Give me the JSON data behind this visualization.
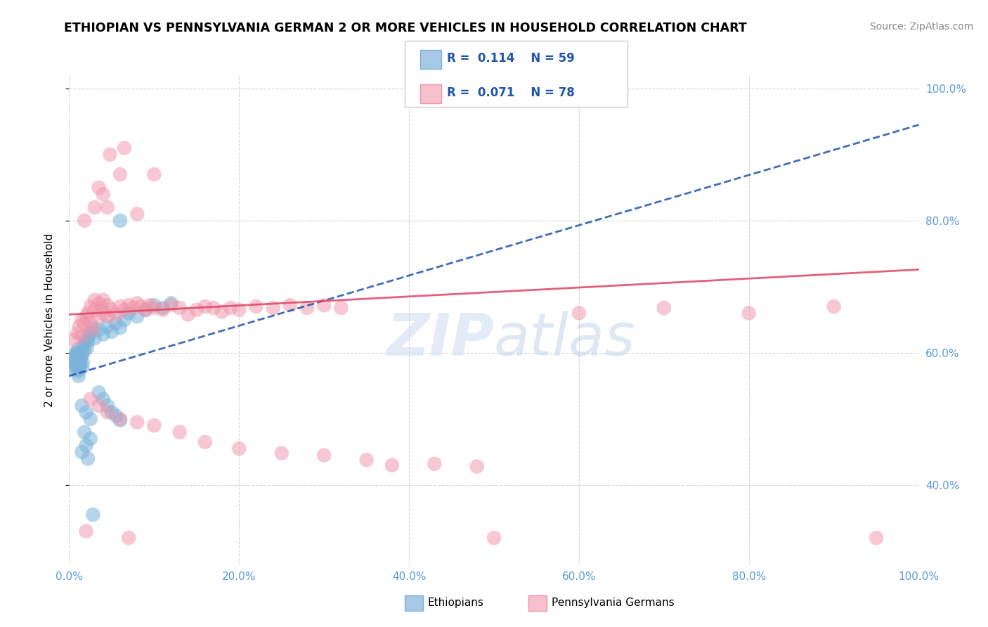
{
  "title": "ETHIOPIAN VS PENNSYLVANIA GERMAN 2 OR MORE VEHICLES IN HOUSEHOLD CORRELATION CHART",
  "source": "Source: ZipAtlas.com",
  "ylabel": "2 or more Vehicles in Household",
  "xlim": [
    0.0,
    1.0
  ],
  "ylim": [
    0.28,
    1.02
  ],
  "xtick_vals": [
    0.0,
    0.2,
    0.4,
    0.6,
    0.8,
    1.0
  ],
  "xtick_labels": [
    "0.0%",
    "20.0%",
    "40.0%",
    "60.0%",
    "80.0%",
    "100.0%"
  ],
  "ytick_vals": [
    0.4,
    0.6,
    0.8,
    1.0
  ],
  "ytick_labels": [
    "40.0%",
    "60.0%",
    "80.0%",
    "100.0%"
  ],
  "ethiopian_color": "#7ab3d9",
  "pg_color": "#f093a8",
  "trendline_eth_color": "#2255aa",
  "trendline_pg_color": "#dd4466",
  "watermark": "ZIPAtlas",
  "ethiopian_points": [
    [
      0.005,
      0.575
    ],
    [
      0.005,
      0.585
    ],
    [
      0.007,
      0.59
    ],
    [
      0.007,
      0.595
    ],
    [
      0.008,
      0.58
    ],
    [
      0.008,
      0.6
    ],
    [
      0.01,
      0.572
    ],
    [
      0.01,
      0.58
    ],
    [
      0.01,
      0.59
    ],
    [
      0.01,
      0.595
    ],
    [
      0.01,
      0.6
    ],
    [
      0.01,
      0.605
    ],
    [
      0.011,
      0.565
    ],
    [
      0.012,
      0.575
    ],
    [
      0.012,
      0.582
    ],
    [
      0.013,
      0.588
    ],
    [
      0.014,
      0.592
    ],
    [
      0.015,
      0.578
    ],
    [
      0.015,
      0.598
    ],
    [
      0.016,
      0.585
    ],
    [
      0.017,
      0.61
    ],
    [
      0.018,
      0.602
    ],
    [
      0.019,
      0.615
    ],
    [
      0.02,
      0.62
    ],
    [
      0.021,
      0.608
    ],
    [
      0.022,
      0.618
    ],
    [
      0.023,
      0.625
    ],
    [
      0.025,
      0.63
    ],
    [
      0.028,
      0.638
    ],
    [
      0.03,
      0.622
    ],
    [
      0.035,
      0.635
    ],
    [
      0.04,
      0.628
    ],
    [
      0.045,
      0.64
    ],
    [
      0.05,
      0.632
    ],
    [
      0.055,
      0.645
    ],
    [
      0.06,
      0.638
    ],
    [
      0.065,
      0.65
    ],
    [
      0.07,
      0.66
    ],
    [
      0.08,
      0.655
    ],
    [
      0.09,
      0.665
    ],
    [
      0.1,
      0.672
    ],
    [
      0.11,
      0.668
    ],
    [
      0.12,
      0.675
    ],
    [
      0.035,
      0.54
    ],
    [
      0.04,
      0.53
    ],
    [
      0.045,
      0.52
    ],
    [
      0.05,
      0.51
    ],
    [
      0.055,
      0.505
    ],
    [
      0.06,
      0.498
    ],
    [
      0.015,
      0.52
    ],
    [
      0.02,
      0.51
    ],
    [
      0.025,
      0.5
    ],
    [
      0.018,
      0.48
    ],
    [
      0.025,
      0.47
    ],
    [
      0.02,
      0.46
    ],
    [
      0.015,
      0.45
    ],
    [
      0.022,
      0.44
    ],
    [
      0.028,
      0.355
    ],
    [
      0.06,
      0.8
    ]
  ],
  "pg_points": [
    [
      0.005,
      0.62
    ],
    [
      0.01,
      0.63
    ],
    [
      0.012,
      0.64
    ],
    [
      0.015,
      0.625
    ],
    [
      0.015,
      0.65
    ],
    [
      0.018,
      0.645
    ],
    [
      0.02,
      0.655
    ],
    [
      0.022,
      0.66
    ],
    [
      0.025,
      0.645
    ],
    [
      0.025,
      0.67
    ],
    [
      0.028,
      0.635
    ],
    [
      0.03,
      0.665
    ],
    [
      0.03,
      0.68
    ],
    [
      0.035,
      0.655
    ],
    [
      0.035,
      0.675
    ],
    [
      0.038,
      0.668
    ],
    [
      0.04,
      0.66
    ],
    [
      0.04,
      0.68
    ],
    [
      0.045,
      0.655
    ],
    [
      0.045,
      0.672
    ],
    [
      0.05,
      0.665
    ],
    [
      0.055,
      0.658
    ],
    [
      0.06,
      0.67
    ],
    [
      0.065,
      0.665
    ],
    [
      0.07,
      0.672
    ],
    [
      0.075,
      0.668
    ],
    [
      0.08,
      0.675
    ],
    [
      0.085,
      0.67
    ],
    [
      0.09,
      0.665
    ],
    [
      0.095,
      0.672
    ],
    [
      0.1,
      0.668
    ],
    [
      0.11,
      0.665
    ],
    [
      0.12,
      0.672
    ],
    [
      0.13,
      0.668
    ],
    [
      0.14,
      0.658
    ],
    [
      0.15,
      0.665
    ],
    [
      0.16,
      0.67
    ],
    [
      0.17,
      0.668
    ],
    [
      0.18,
      0.662
    ],
    [
      0.19,
      0.668
    ],
    [
      0.2,
      0.665
    ],
    [
      0.22,
      0.67
    ],
    [
      0.24,
      0.668
    ],
    [
      0.26,
      0.672
    ],
    [
      0.28,
      0.668
    ],
    [
      0.3,
      0.672
    ],
    [
      0.32,
      0.668
    ],
    [
      0.018,
      0.8
    ],
    [
      0.03,
      0.82
    ],
    [
      0.035,
      0.85
    ],
    [
      0.04,
      0.84
    ],
    [
      0.045,
      0.82
    ],
    [
      0.06,
      0.87
    ],
    [
      0.08,
      0.81
    ],
    [
      0.1,
      0.87
    ],
    [
      0.048,
      0.9
    ],
    [
      0.065,
      0.91
    ],
    [
      0.025,
      0.53
    ],
    [
      0.035,
      0.52
    ],
    [
      0.045,
      0.51
    ],
    [
      0.06,
      0.5
    ],
    [
      0.08,
      0.495
    ],
    [
      0.1,
      0.49
    ],
    [
      0.13,
      0.48
    ],
    [
      0.16,
      0.465
    ],
    [
      0.2,
      0.455
    ],
    [
      0.25,
      0.448
    ],
    [
      0.3,
      0.445
    ],
    [
      0.35,
      0.438
    ],
    [
      0.38,
      0.43
    ],
    [
      0.43,
      0.432
    ],
    [
      0.48,
      0.428
    ],
    [
      0.02,
      0.33
    ],
    [
      0.07,
      0.32
    ],
    [
      0.5,
      0.32
    ],
    [
      0.6,
      0.66
    ],
    [
      0.7,
      0.668
    ],
    [
      0.8,
      0.66
    ],
    [
      0.9,
      0.67
    ],
    [
      0.95,
      0.32
    ]
  ]
}
